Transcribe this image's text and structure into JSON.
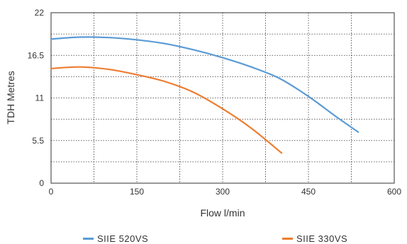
{
  "chart_data": {
    "type": "line",
    "xlabel": "Flow l/min",
    "ylabel": "TDH Metres",
    "xlim": [
      0,
      600
    ],
    "ylim": [
      0,
      22
    ],
    "x_ticks": [
      "0",
      "150",
      "300",
      "450",
      "600"
    ],
    "y_ticks": [
      "0",
      "5.5",
      "11",
      "16.5",
      "22"
    ],
    "grid": true,
    "legend_position": "bottom",
    "series": [
      {
        "name": "SIIE 520VS",
        "color": "#5b9bd5",
        "points": [
          [
            0,
            18.6
          ],
          [
            50,
            18.85
          ],
          [
            100,
            18.8
          ],
          [
            150,
            18.5
          ],
          [
            200,
            18.0
          ],
          [
            250,
            17.2
          ],
          [
            300,
            16.2
          ],
          [
            350,
            15.0
          ],
          [
            400,
            13.5
          ],
          [
            450,
            11.2
          ],
          [
            500,
            8.5
          ],
          [
            537,
            6.6
          ]
        ]
      },
      {
        "name": "SIIE 330VS",
        "color": "#ed7d31",
        "points": [
          [
            0,
            14.8
          ],
          [
            50,
            15.0
          ],
          [
            100,
            14.7
          ],
          [
            150,
            14.0
          ],
          [
            200,
            13.1
          ],
          [
            250,
            11.7
          ],
          [
            300,
            9.6
          ],
          [
            350,
            7.1
          ],
          [
            403,
            3.9
          ]
        ]
      }
    ]
  }
}
